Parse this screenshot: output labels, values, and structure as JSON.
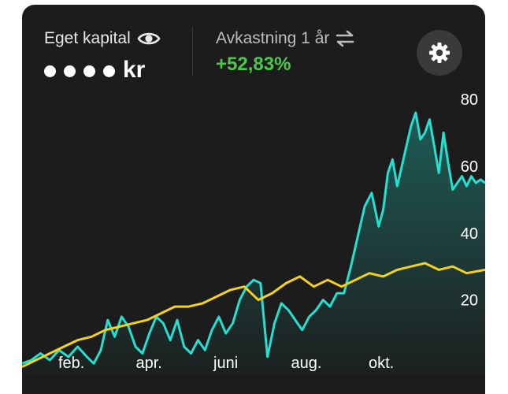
{
  "header": {
    "equity_label": "Eget kapital",
    "equity_currency": "kr",
    "return_label": "Avkastning 1 år",
    "return_value": "+52,83%"
  },
  "icons": {
    "visibility": "eye-icon",
    "swap": "swap-arrows-icon",
    "settings": "gear-icon"
  },
  "colors": {
    "portfolio_line": "#25e0d0",
    "benchmark_line": "#f2d21c",
    "positive": "#4cc94a",
    "background": "#1c1c1c"
  },
  "chart_data": {
    "type": "line",
    "x_ticks": [
      "feb.",
      "apr.",
      "juni",
      "aug.",
      "okt."
    ],
    "y_ticks": [
      "80",
      "60",
      "40",
      "20"
    ],
    "ylim": [
      -2,
      80
    ],
    "xlim": [
      0,
      1
    ],
    "series": [
      {
        "color": "#25e0d0",
        "fill": true,
        "x": [
          0,
          0.02,
          0.04,
          0.06,
          0.08,
          0.1,
          0.12,
          0.14,
          0.155,
          0.17,
          0.185,
          0.2,
          0.215,
          0.23,
          0.245,
          0.26,
          0.275,
          0.29,
          0.305,
          0.32,
          0.335,
          0.35,
          0.365,
          0.38,
          0.395,
          0.41,
          0.425,
          0.44,
          0.455,
          0.47,
          0.485,
          0.5,
          0.515,
          0.53,
          0.545,
          0.56,
          0.575,
          0.59,
          0.605,
          0.62,
          0.635,
          0.65,
          0.665,
          0.68,
          0.695,
          0.71,
          0.725,
          0.74,
          0.755,
          0.77,
          0.78,
          0.79,
          0.8,
          0.81,
          0.82,
          0.83,
          0.84,
          0.85,
          0.86,
          0.87,
          0.88,
          0.89,
          0.9,
          0.91,
          0.92,
          0.93,
          0.94,
          0.95,
          0.96,
          0.97,
          0.98,
          0.99,
          1.0
        ],
        "y": [
          1,
          2,
          4,
          2,
          5,
          3,
          6,
          3,
          1,
          5,
          14,
          9,
          15,
          12,
          6,
          4,
          10,
          15,
          13,
          8,
          14,
          6,
          4,
          8,
          5,
          11,
          15,
          10,
          13,
          20,
          24,
          26,
          25,
          3,
          13,
          19,
          17,
          14,
          11,
          15,
          17,
          20,
          18,
          22,
          22,
          30,
          39,
          48,
          52,
          42,
          47,
          58,
          62,
          54,
          60,
          66,
          72,
          76,
          68,
          70,
          74,
          66,
          58,
          70,
          61,
          53,
          55,
          57,
          54,
          57,
          55,
          56,
          55
        ]
      },
      {
        "color": "#f2d21c",
        "fill": false,
        "x": [
          0,
          0.03,
          0.06,
          0.09,
          0.12,
          0.15,
          0.18,
          0.21,
          0.24,
          0.27,
          0.3,
          0.33,
          0.36,
          0.39,
          0.42,
          0.45,
          0.48,
          0.51,
          0.54,
          0.57,
          0.6,
          0.63,
          0.66,
          0.69,
          0.72,
          0.75,
          0.78,
          0.81,
          0.84,
          0.87,
          0.9,
          0.93,
          0.96,
          1.0
        ],
        "y": [
          0,
          2,
          4,
          6,
          8,
          9,
          11,
          12,
          13,
          14,
          16,
          18,
          18,
          19,
          21,
          23,
          24,
          20,
          22,
          25,
          27,
          24,
          26,
          24,
          26,
          28,
          27,
          29,
          30,
          31,
          29,
          30,
          28,
          29
        ]
      }
    ]
  }
}
